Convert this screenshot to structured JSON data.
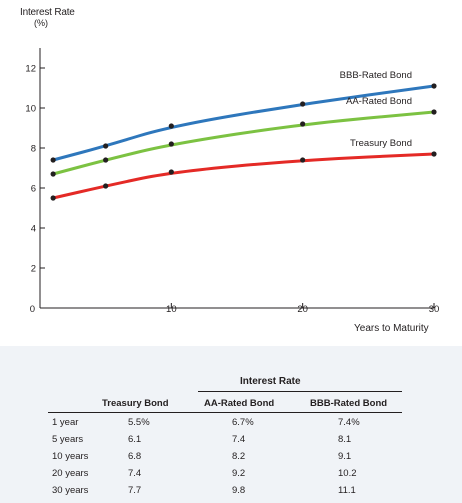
{
  "chart_data": {
    "type": "line",
    "ylabel": "Interest Rate",
    "ylabel_unit": "(%)",
    "xlabel": "Years to Maturity",
    "x": [
      1,
      5,
      10,
      20,
      30
    ],
    "xticks": [
      0,
      10,
      20,
      30
    ],
    "yticks": [
      0,
      2,
      4,
      6,
      8,
      10,
      12
    ],
    "xlim": [
      0,
      30
    ],
    "ylim": [
      0,
      13
    ],
    "grid": false,
    "series": [
      {
        "name": "BBB-Rated Bond",
        "color": "#2e77bc",
        "values": [
          7.4,
          8.1,
          9.1,
          10.2,
          11.1
        ]
      },
      {
        "name": "AA-Rated Bond",
        "color": "#7cc242",
        "values": [
          6.7,
          7.4,
          8.2,
          9.2,
          9.8
        ]
      },
      {
        "name": "Treasury Bond",
        "color": "#e42a26",
        "values": [
          5.5,
          6.1,
          6.8,
          7.4,
          7.7
        ]
      }
    ]
  },
  "table": {
    "title": "Interest Rate",
    "columns": [
      "Treasury Bond",
      "AA-Rated Bond",
      "BBB-Rated Bond"
    ],
    "rows": [
      {
        "label": "1 year",
        "treasury": "5.5%",
        "aa": "6.7%",
        "bbb": "7.4%"
      },
      {
        "label": "5 years",
        "treasury": "6.1",
        "aa": "7.4",
        "bbb": "8.1"
      },
      {
        "label": "10 years",
        "treasury": "6.8",
        "aa": "8.2",
        "bbb": "9.1"
      },
      {
        "label": "20 years",
        "treasury": "7.4",
        "aa": "9.2",
        "bbb": "10.2"
      },
      {
        "label": "30 years",
        "treasury": "7.7",
        "aa": "9.8",
        "bbb": "11.1"
      }
    ]
  }
}
